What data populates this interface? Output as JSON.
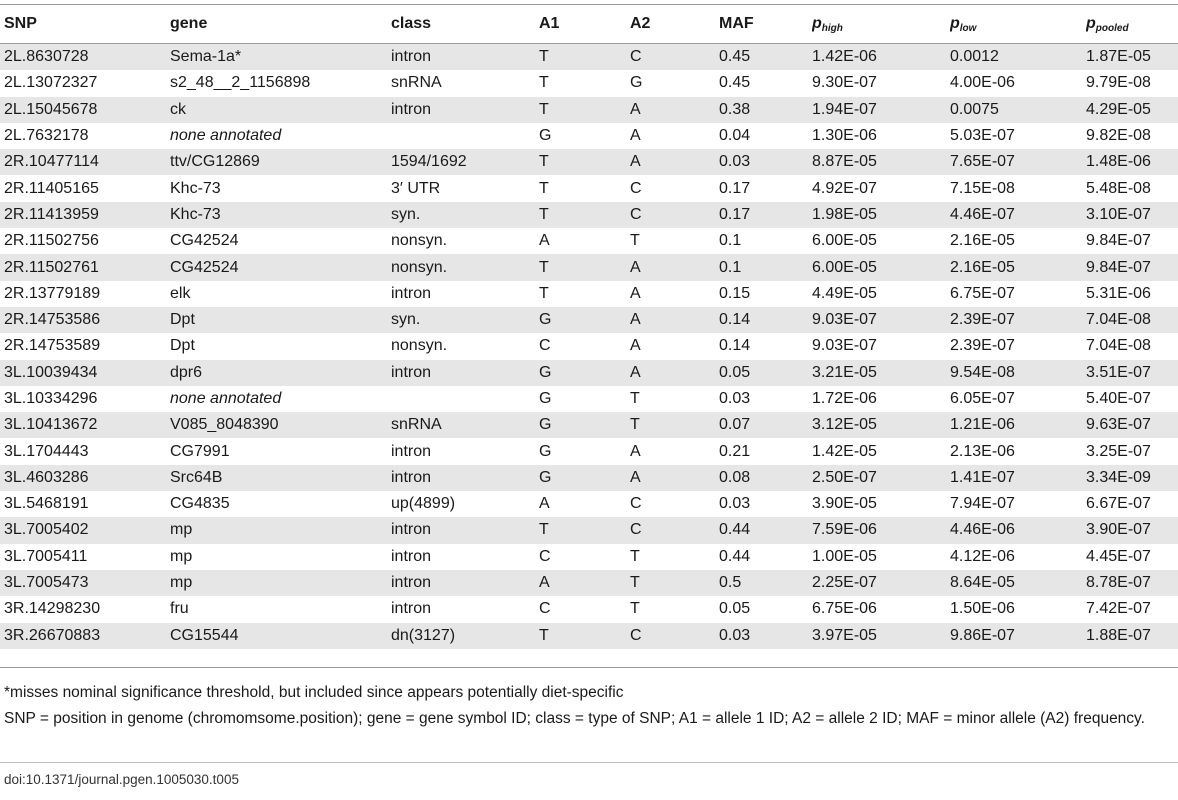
{
  "table": {
    "headers": {
      "snp": "SNP",
      "gene": "gene",
      "class": "class",
      "a1": "A1",
      "a2": "A2",
      "maf": "MAF",
      "p_high": {
        "base": "p",
        "sub": "high"
      },
      "p_low": {
        "base": "p",
        "sub": "low"
      },
      "p_pooled": {
        "base": "p",
        "sub": "pooled"
      }
    },
    "rows": [
      [
        "2L.8630728",
        "Sema-1a*",
        "intron",
        "T",
        "C",
        "0.45",
        "1.42E-06",
        "0.0012",
        "1.87E-05"
      ],
      [
        "2L.13072327",
        "s2_48__2_1156898",
        "snRNA",
        "T",
        "G",
        "0.45",
        "9.30E-07",
        "4.00E-06",
        "9.79E-08"
      ],
      [
        "2L.15045678",
        "ck",
        "intron",
        "T",
        "A",
        "0.38",
        "1.94E-07",
        "0.0075",
        "4.29E-05"
      ],
      [
        "2L.7632178",
        "none annotated",
        "",
        "G",
        "A",
        "0.04",
        "1.30E-06",
        "5.03E-07",
        "9.82E-08"
      ],
      [
        "2R.10477114",
        "ttv/CG12869",
        "1594/1692",
        "T",
        "A",
        "0.03",
        "8.87E-05",
        "7.65E-07",
        "1.48E-06"
      ],
      [
        "2R.11405165",
        "Khc-73",
        "3′ UTR",
        "T",
        "C",
        "0.17",
        "4.92E-07",
        "7.15E-08",
        "5.48E-08"
      ],
      [
        "2R.11413959",
        "Khc-73",
        "syn.",
        "T",
        "C",
        "0.17",
        "1.98E-05",
        "4.46E-07",
        "3.10E-07"
      ],
      [
        "2R.11502756",
        "CG42524",
        "nonsyn.",
        "A",
        "T",
        "0.1",
        "6.00E-05",
        "2.16E-05",
        "9.84E-07"
      ],
      [
        "2R.11502761",
        "CG42524",
        "nonsyn.",
        "T",
        "A",
        "0.1",
        "6.00E-05",
        "2.16E-05",
        "9.84E-07"
      ],
      [
        "2R.13779189",
        "elk",
        "intron",
        "T",
        "A",
        "0.15",
        "4.49E-05",
        "6.75E-07",
        "5.31E-06"
      ],
      [
        "2R.14753586",
        "Dpt",
        "syn.",
        "G",
        "A",
        "0.14",
        "9.03E-07",
        "2.39E-07",
        "7.04E-08"
      ],
      [
        "2R.14753589",
        "Dpt",
        "nonsyn.",
        "C",
        "A",
        "0.14",
        "9.03E-07",
        "2.39E-07",
        "7.04E-08"
      ],
      [
        "3L.10039434",
        "dpr6",
        "intron",
        "G",
        "A",
        "0.05",
        "3.21E-05",
        "9.54E-08",
        "3.51E-07"
      ],
      [
        "3L.10334296",
        "none annotated",
        "",
        "G",
        "T",
        "0.03",
        "1.72E-06",
        "6.05E-07",
        "5.40E-07"
      ],
      [
        "3L.10413672",
        "V085_8048390",
        "snRNA",
        "G",
        "T",
        "0.07",
        "3.12E-05",
        "1.21E-06",
        "9.63E-07"
      ],
      [
        "3L.1704443",
        "CG7991",
        "intron",
        "G",
        "A",
        "0.21",
        "1.42E-05",
        "2.13E-06",
        "3.25E-07"
      ],
      [
        "3L.4603286",
        "Src64B",
        "intron",
        "G",
        "A",
        "0.08",
        "2.50E-07",
        "1.41E-07",
        "3.34E-09"
      ],
      [
        "3L.5468191",
        "CG4835",
        "up(4899)",
        "A",
        "C",
        "0.03",
        "3.90E-05",
        "7.94E-07",
        "6.67E-07"
      ],
      [
        "3L.7005402",
        "mp",
        "intron",
        "T",
        "C",
        "0.44",
        "7.59E-06",
        "4.46E-06",
        "3.90E-07"
      ],
      [
        "3L.7005411",
        "mp",
        "intron",
        "C",
        "T",
        "0.44",
        "1.00E-05",
        "4.12E-06",
        "4.45E-07"
      ],
      [
        "3L.7005473",
        "mp",
        "intron",
        "A",
        "T",
        "0.5",
        "2.25E-07",
        "8.64E-05",
        "8.78E-07"
      ],
      [
        "3R.14298230",
        "fru",
        "intron",
        "C",
        "T",
        "0.05",
        "6.75E-06",
        "1.50E-06",
        "7.42E-07"
      ],
      [
        "3R.26670883",
        "CG15544",
        "dn(3127)",
        "T",
        "C",
        "0.03",
        "3.97E-05",
        "9.86E-07",
        "1.88E-07"
      ]
    ],
    "italic_genes": [
      "none annotated"
    ]
  },
  "footnotes": {
    "note1": "*misses nominal significance threshold, but included since appears potentially diet-specific",
    "note2": "SNP = position in genome (chromomsome.position); gene = gene symbol ID; class = type of SNP; A1 = allele 1 ID; A2 = allele 2 ID; MAF = minor allele (A2) frequency."
  },
  "doi": "doi:10.1371/journal.pgen.1005030.t005"
}
